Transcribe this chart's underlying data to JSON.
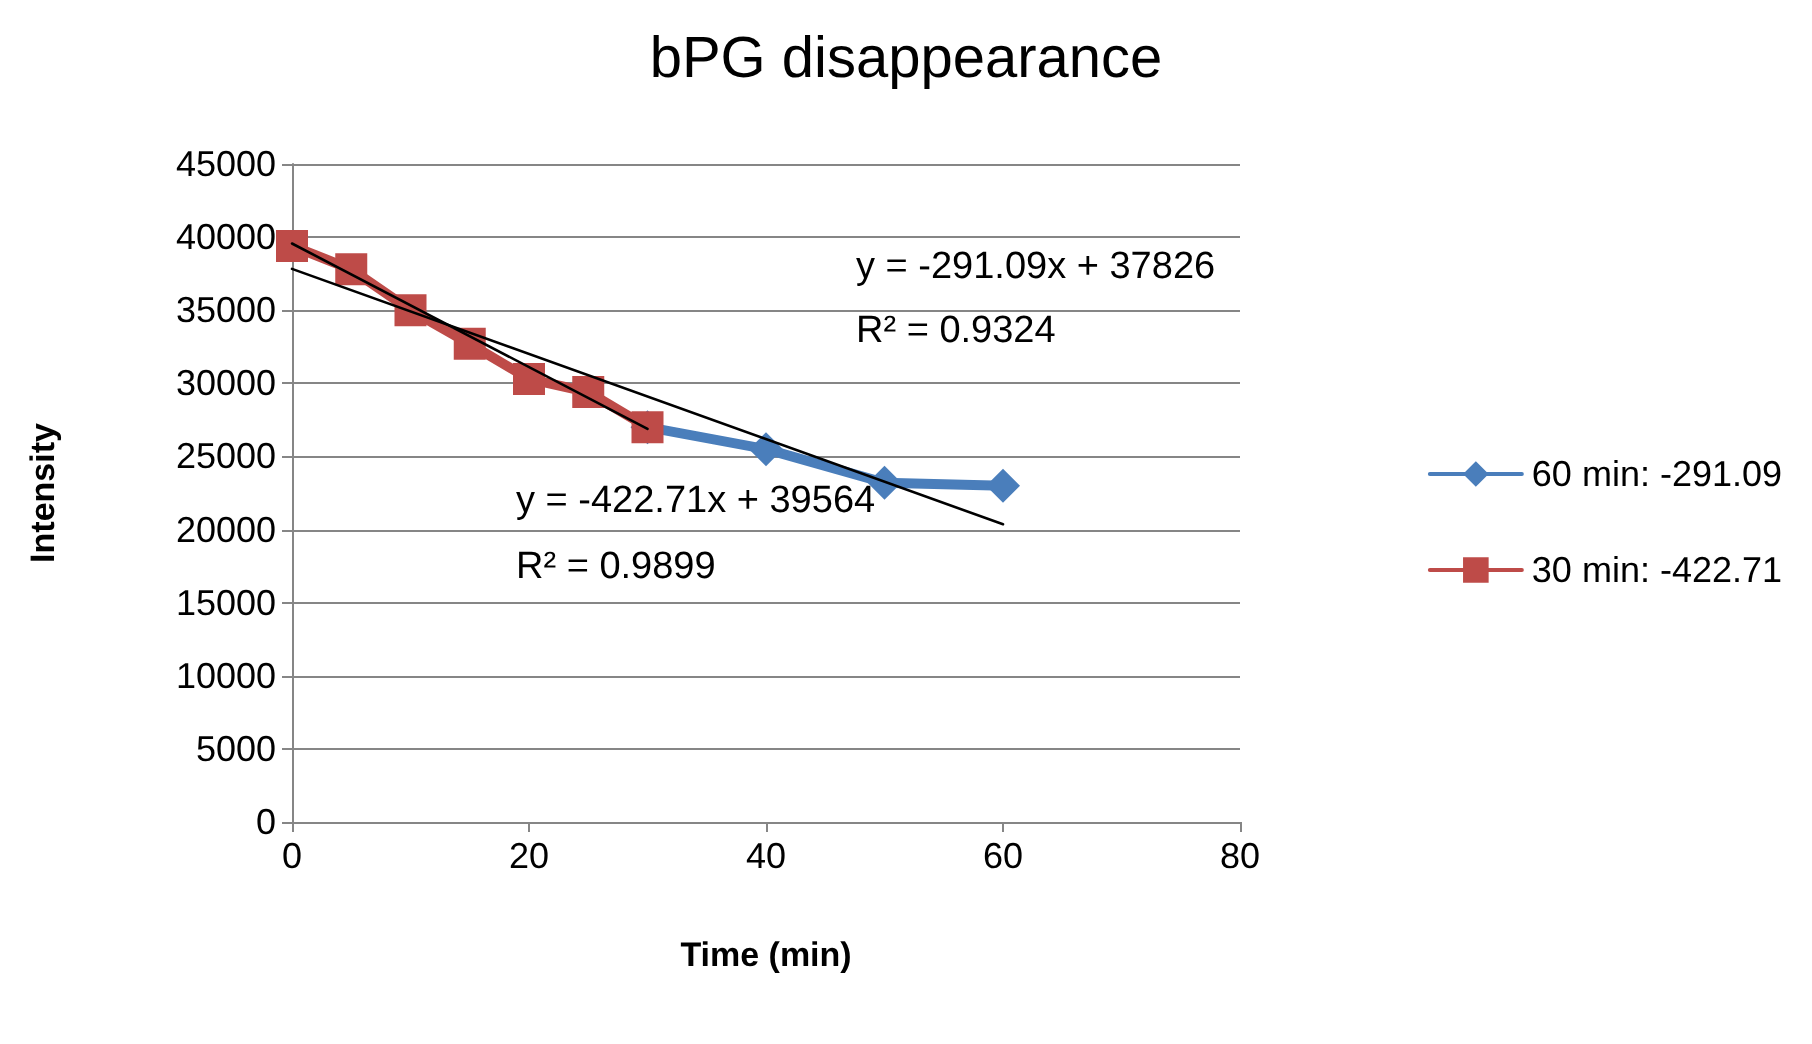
{
  "chart_data": {
    "type": "line",
    "title": "bPG disappearance",
    "xlabel": "Time (min)",
    "ylabel": "Intensity",
    "xlim": [
      0,
      80
    ],
    "xticks": [
      0,
      20,
      40,
      60,
      80
    ],
    "ylim": [
      0,
      45000
    ],
    "yticks": [
      0,
      5000,
      10000,
      15000,
      20000,
      25000,
      30000,
      35000,
      40000,
      45000
    ],
    "grid": "y",
    "legend": "right",
    "series": [
      {
        "name": "60 min: -291.09",
        "color": "#4a7ebb",
        "marker": "diamond",
        "x": [
          30,
          40,
          50,
          60
        ],
        "values": [
          27000,
          25500,
          23200,
          23000
        ]
      },
      {
        "name": "30 min: -422.71",
        "color": "#be4b48",
        "marker": "square",
        "x": [
          0,
          5,
          10,
          15,
          20,
          25,
          30
        ],
        "values": [
          39400,
          37800,
          35000,
          32700,
          30300,
          29400,
          27000
        ]
      },
      {
        "color": "#000000",
        "marker": "none",
        "x": [
          0,
          60
        ],
        "values": [
          37826,
          20361
        ]
      },
      {
        "color": "#000000",
        "marker": "none",
        "x": [
          0,
          30
        ],
        "values": [
          39564,
          26883
        ]
      }
    ],
    "annotations": [
      "y = -291.09x + 37826",
      "R² = 0.9324",
      "y = -422.71x + 39564",
      "R² = 0.9899"
    ]
  }
}
